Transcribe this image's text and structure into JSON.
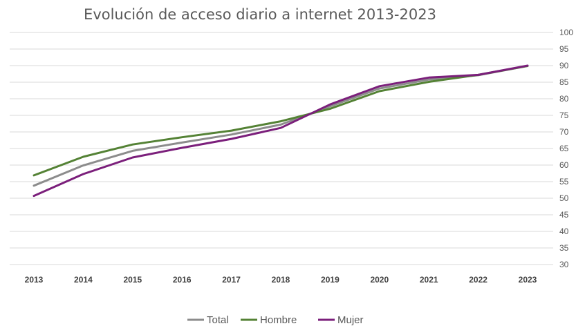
{
  "chart_data": {
    "type": "line",
    "title": "Evolución de acceso diario a internet  2013-2023",
    "xlabel": "",
    "ylabel": "",
    "categories": [
      "2013",
      "2014",
      "2015",
      "2016",
      "2017",
      "2018",
      "2019",
      "2020",
      "2021",
      "2022",
      "2023"
    ],
    "yticks": [
      30,
      35,
      40,
      45,
      50,
      55,
      60,
      65,
      70,
      75,
      80,
      85,
      90,
      95,
      100
    ],
    "ylim": [
      30,
      100
    ],
    "grid": true,
    "y_axis_side": "right",
    "legend_position": "bottom",
    "series": [
      {
        "name": "Total",
        "color": "#8c8c8c",
        "values": [
          53.8,
          59.9,
          64.3,
          66.8,
          69.2,
          72.2,
          77.7,
          83.1,
          85.8,
          87.1,
          89.9
        ]
      },
      {
        "name": "Hombre",
        "color": "#548235",
        "values": [
          56.9,
          62.5,
          66.2,
          68.4,
          70.4,
          73.2,
          77.0,
          82.3,
          85.1,
          87.2,
          89.9
        ]
      },
      {
        "name": "Mujer",
        "color": "#7b1f7b",
        "values": [
          50.7,
          57.3,
          62.3,
          65.2,
          67.9,
          71.2,
          78.3,
          83.8,
          86.4,
          87.2,
          90.0
        ]
      }
    ]
  }
}
